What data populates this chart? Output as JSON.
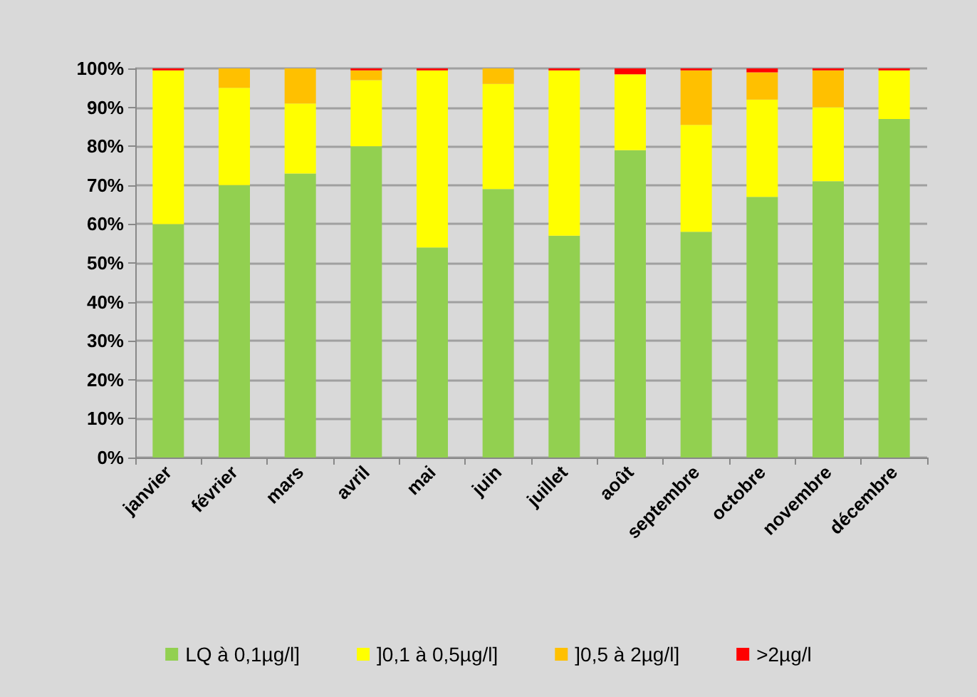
{
  "chart_data": {
    "type": "bar",
    "stacked": true,
    "categories": [
      "janvier",
      "février",
      "mars",
      "avril",
      "mai",
      "juin",
      "juillet",
      "août",
      "septembre",
      "octobre",
      "novembre",
      "décembre"
    ],
    "series": [
      {
        "name": "LQ à 0,1µg/l]",
        "color": "#92d050",
        "values": [
          60,
          70,
          73,
          80,
          54,
          69,
          57,
          79,
          58,
          67,
          71,
          87
        ]
      },
      {
        "name": "]0,1 à 0,5µg/l]",
        "color": "#ffff00",
        "values": [
          39.5,
          25,
          18,
          17,
          45.5,
          27,
          42.5,
          19.5,
          27.5,
          25,
          19,
          12.5
        ]
      },
      {
        "name": "]0,5 à 2µg/l]",
        "color": "#ffc000",
        "values": [
          0,
          5,
          9,
          2.5,
          0,
          4,
          0,
          0,
          14,
          7,
          9.5,
          0
        ]
      },
      {
        "name": ">2µg/l",
        "color": "#ff0000",
        "values": [
          0.5,
          0,
          0,
          0.5,
          0.5,
          0,
          0.5,
          1.5,
          0.5,
          1,
          0.5,
          0.5
        ]
      }
    ],
    "ylim": [
      0,
      100
    ],
    "yticks": [
      {
        "value": 0,
        "label": "0%"
      },
      {
        "value": 10,
        "label": "10%"
      },
      {
        "value": 20,
        "label": "20%"
      },
      {
        "value": 30,
        "label": "30%"
      },
      {
        "value": 40,
        "label": "40%"
      },
      {
        "value": 50,
        "label": "50%"
      },
      {
        "value": 60,
        "label": "60%"
      },
      {
        "value": 70,
        "label": "70%"
      },
      {
        "value": 80,
        "label": "80%"
      },
      {
        "value": 90,
        "label": "90%"
      },
      {
        "value": 100,
        "label": "100%"
      }
    ],
    "grid": "y",
    "legend": "bottom"
  }
}
